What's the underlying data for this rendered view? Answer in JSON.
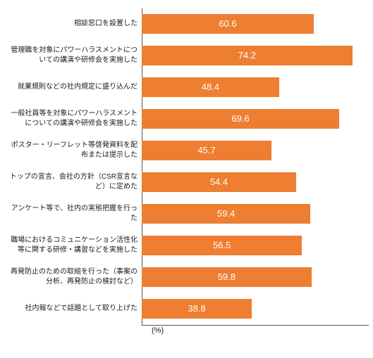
{
  "chart": {
    "type": "bar",
    "orientation": "horizontal",
    "xmax": 80,
    "bar_color": "#ee7e31",
    "value_text_color": "#ffffff",
    "value_fontsize": 13,
    "label_fontsize": 10,
    "label_color": "#1a1a1a",
    "axis_color": "#555555",
    "background_color": "#ffffff",
    "axis_unit_label": "(%)",
    "rows": [
      {
        "label": "相談窓口を設置した",
        "value": 60.6
      },
      {
        "label": "管理職を対象にパワーハラスメントについての講演や研修会を実施した",
        "value": 74.2
      },
      {
        "label": "就業規則などの社内規定に盛り込んだ",
        "value": 48.4
      },
      {
        "label": "一般社員等を対象にパワーハラスメントについての講演や研修会を実施した",
        "value": 69.6
      },
      {
        "label": "ポスター・リーフレット等啓発資料を配布または提示した",
        "value": 45.7
      },
      {
        "label": "トップの宣言、会社の方針（CSR宣言など）に定めた",
        "value": 54.4
      },
      {
        "label": "アンケート等で、社内の実態把握を行った",
        "value": 59.4
      },
      {
        "label": "職場におけるコミュニケーション活性化等に関する研修・講習などを実施した",
        "value": 56.5
      },
      {
        "label": "再発防止のための取組を行った（事案の分析、再発防止の検討など）",
        "value": 59.8
      },
      {
        "label": "社内報などで話題として取り上げた",
        "value": 38.8
      }
    ]
  }
}
